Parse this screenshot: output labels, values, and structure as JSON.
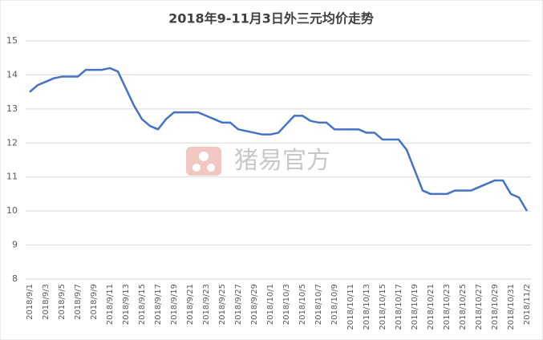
{
  "chart_data": {
    "type": "line",
    "title": "2018年9-11月3日外三元均价走势",
    "watermark": "猪易官方",
    "categories": [
      "2018/9/1",
      null,
      "2018/9/3",
      null,
      "2018/9/5",
      null,
      "2018/9/7",
      null,
      "2018/9/9",
      null,
      "2018/9/11",
      null,
      "2018/9/13",
      null,
      "2018/9/15",
      null,
      "2018/9/17",
      null,
      "2018/9/19",
      null,
      "2018/9/21",
      null,
      "2018/9/23",
      null,
      "2018/9/25",
      null,
      "2018/9/27",
      null,
      "2018/9/29",
      null,
      "2018/10/1",
      null,
      "2018/10/3",
      null,
      "2018/10/5",
      null,
      "2018/10/7",
      null,
      "2018/10/9",
      null,
      "2018/10/11",
      null,
      "2018/10/13",
      null,
      "2018/10/15",
      null,
      "2018/10/17",
      null,
      "2018/10/19",
      null,
      "2018/10/21",
      null,
      "2018/10/23",
      null,
      "2018/10/25",
      null,
      "2018/10/27",
      null,
      "2018/10/29",
      null,
      "2018/10/31",
      null,
      "2018/11/2"
    ],
    "series": [
      {
        "name": "外三元均价",
        "color": "#4472c4",
        "values": [
          13.5,
          13.7,
          13.8,
          13.9,
          13.95,
          13.95,
          13.95,
          14.15,
          14.15,
          14.15,
          14.2,
          14.1,
          13.6,
          13.1,
          12.7,
          12.5,
          12.4,
          12.7,
          12.9,
          12.9,
          12.9,
          12.9,
          12.8,
          12.7,
          12.6,
          12.6,
          12.4,
          12.35,
          12.3,
          12.25,
          12.25,
          12.3,
          12.55,
          12.8,
          12.8,
          12.65,
          12.6,
          12.6,
          12.4,
          12.4,
          12.4,
          12.4,
          12.3,
          12.3,
          12.1,
          12.1,
          12.1,
          11.8,
          11.2,
          10.6,
          10.5,
          10.5,
          10.5,
          10.6,
          10.6,
          10.6,
          10.7,
          10.8,
          10.9,
          10.9,
          10.5,
          10.4,
          10.0
        ]
      }
    ],
    "ylim": [
      8,
      15
    ],
    "yticks": [
      8,
      9,
      10,
      11,
      12,
      13,
      14,
      15
    ],
    "grid": true
  }
}
